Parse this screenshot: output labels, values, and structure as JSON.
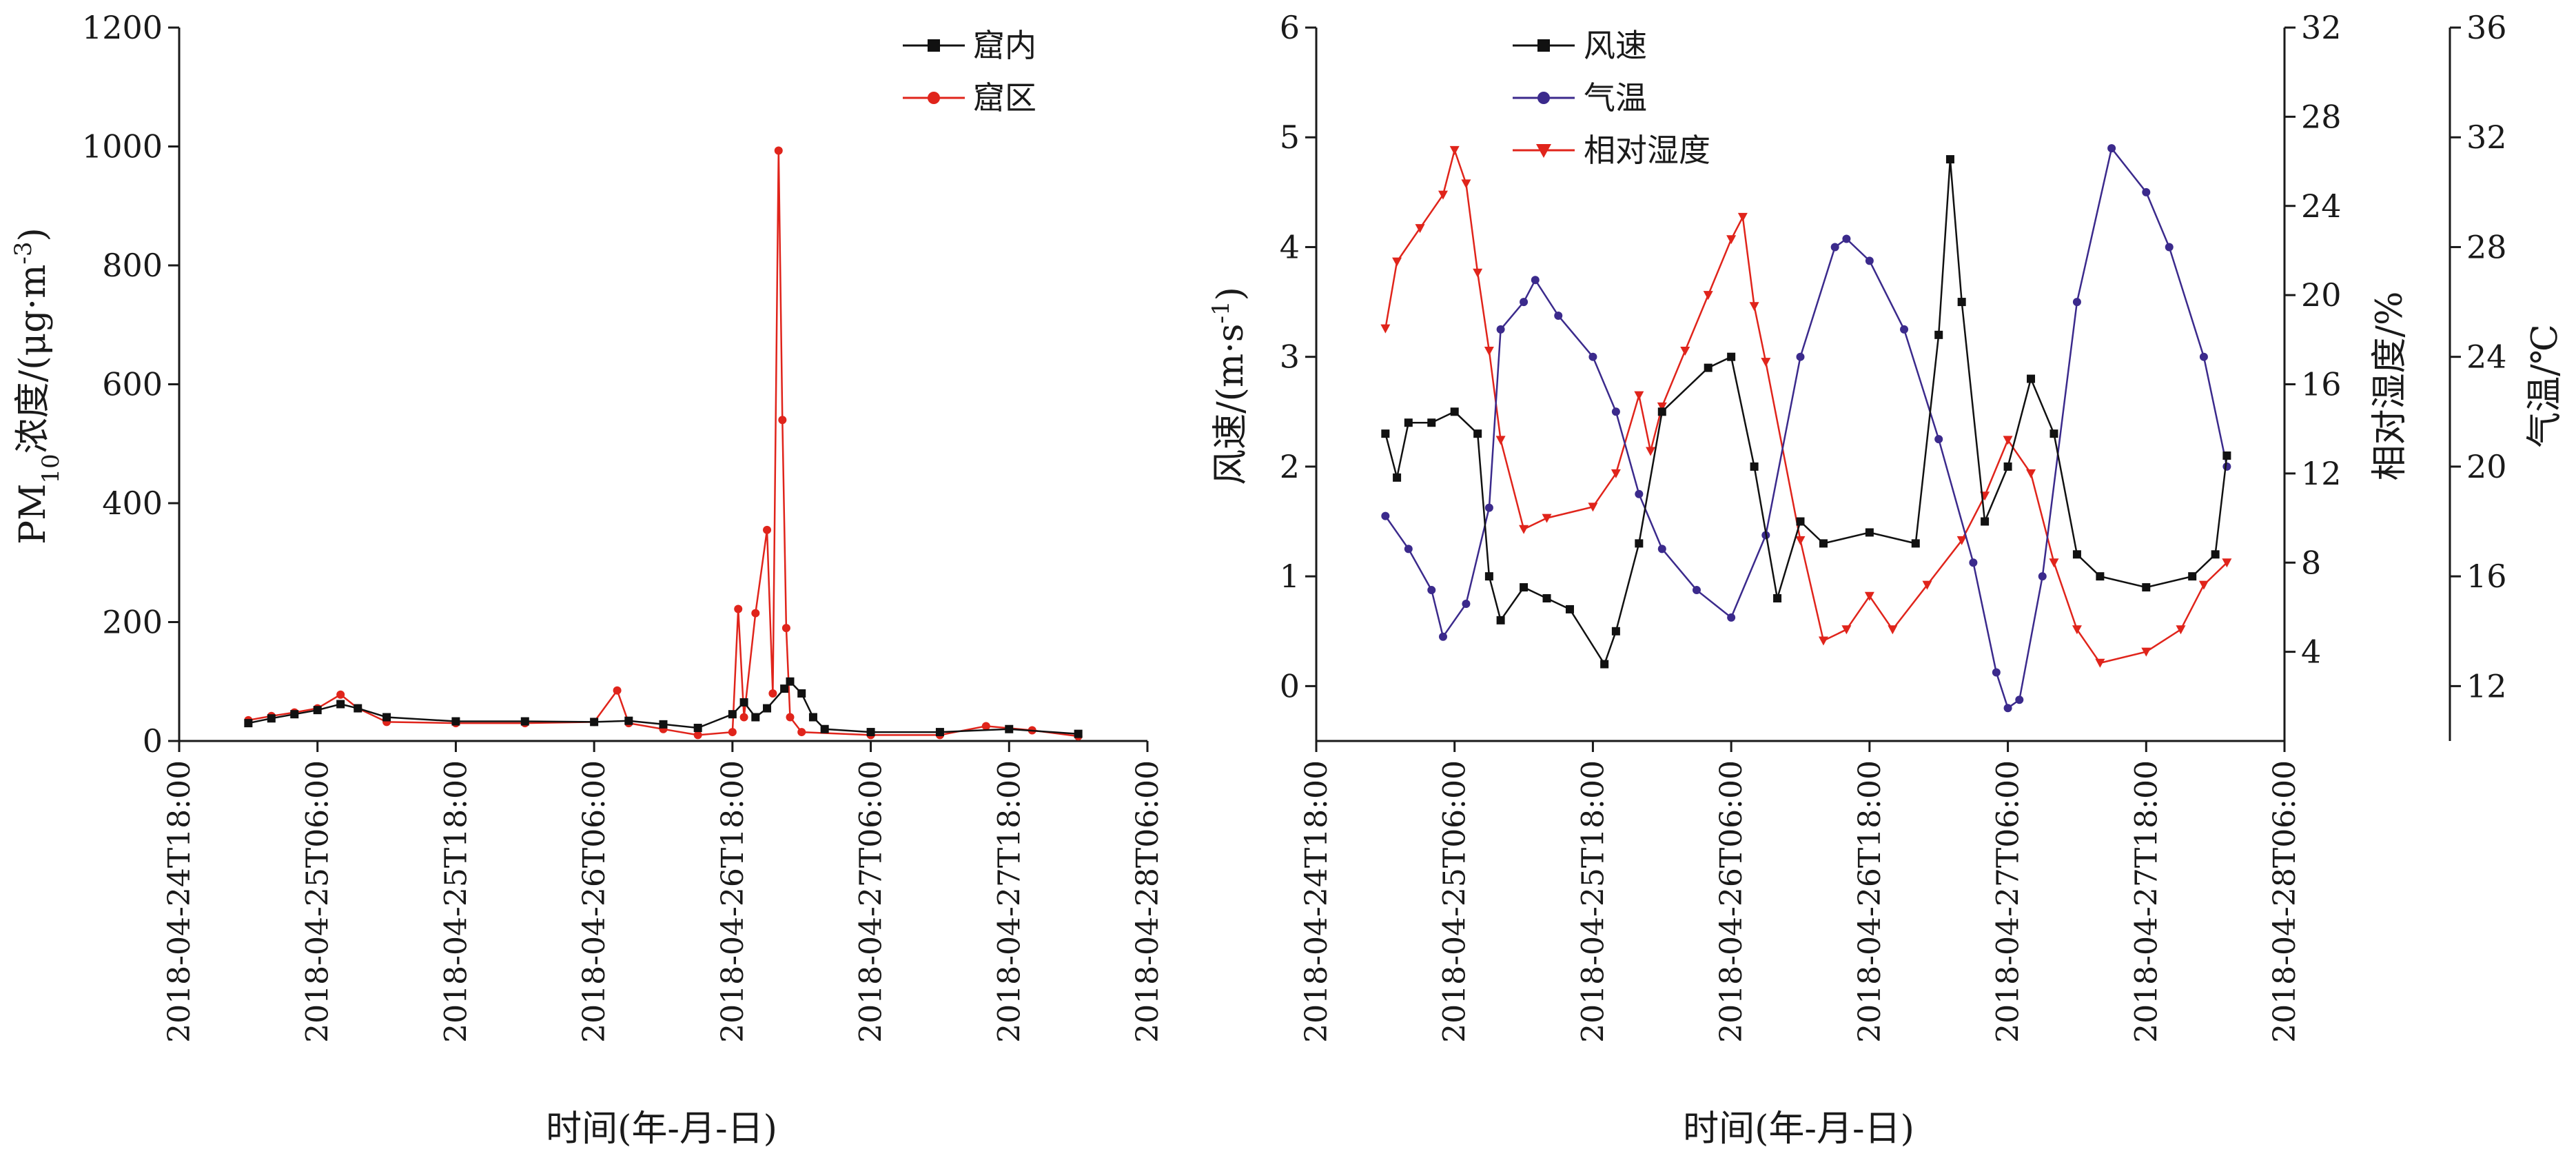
{
  "chart_data": [
    {
      "id": "left",
      "type": "line",
      "ylabel_parts": [
        "PM",
        "10",
        "浓度/(μg·m",
        "-3",
        ")"
      ],
      "xlabel": "时间(年-月-日)",
      "ylim": [
        0,
        1200
      ],
      "y_ticks": [
        "0",
        "200",
        "400",
        "600",
        "800",
        "1000",
        "1200"
      ],
      "x_ticks": [
        "2018-04-24T18:00",
        "2018-04-25T06:00",
        "2018-04-25T18:00",
        "2018-04-26T06:00",
        "2018-04-26T18:00",
        "2018-04-27T06:00",
        "2018-04-27T18:00",
        "2018-04-28T06:00"
      ],
      "x_start": "2018-04-24T18:00",
      "x_end": "2018-04-28T06:00",
      "legend_position": "top-right",
      "series": [
        {
          "name": "窟内",
          "color": "#111111",
          "marker": "square",
          "points": [
            [
              "2018-04-25 00:00",
              30
            ],
            [
              "2018-04-25 02:00",
              38
            ],
            [
              "2018-04-25 04:00",
              45
            ],
            [
              "2018-04-25 06:00",
              52
            ],
            [
              "2018-04-25 08:00",
              62
            ],
            [
              "2018-04-25 09:30",
              55
            ],
            [
              "2018-04-25 12:00",
              40
            ],
            [
              "2018-04-25 18:00",
              33
            ],
            [
              "2018-04-26 00:00",
              33
            ],
            [
              "2018-04-26 06:00",
              32
            ],
            [
              "2018-04-26 09:00",
              34
            ],
            [
              "2018-04-26 12:00",
              28
            ],
            [
              "2018-04-26 15:00",
              22
            ],
            [
              "2018-04-26 18:00",
              45
            ],
            [
              "2018-04-26 19:00",
              65
            ],
            [
              "2018-04-26 20:00",
              40
            ],
            [
              "2018-04-26 21:00",
              55
            ],
            [
              "2018-04-26 22:30",
              88
            ],
            [
              "2018-04-26 23:00",
              100
            ],
            [
              "2018-04-27 00:00",
              80
            ],
            [
              "2018-04-27 01:00",
              40
            ],
            [
              "2018-04-27 02:00",
              20
            ],
            [
              "2018-04-27 06:00",
              15
            ],
            [
              "2018-04-27 12:00",
              15
            ],
            [
              "2018-04-27 18:00",
              20
            ],
            [
              "2018-04-28 00:00",
              12
            ]
          ]
        },
        {
          "name": "窟区",
          "color": "#e0241b",
          "marker": "circle",
          "points": [
            [
              "2018-04-25 00:00",
              35
            ],
            [
              "2018-04-25 02:00",
              42
            ],
            [
              "2018-04-25 04:00",
              48
            ],
            [
              "2018-04-25 06:00",
              55
            ],
            [
              "2018-04-25 08:00",
              78
            ],
            [
              "2018-04-25 09:30",
              55
            ],
            [
              "2018-04-25 12:00",
              32
            ],
            [
              "2018-04-25 18:00",
              30
            ],
            [
              "2018-04-26 00:00",
              30
            ],
            [
              "2018-04-26 06:00",
              32
            ],
            [
              "2018-04-26 08:00",
              85
            ],
            [
              "2018-04-26 09:00",
              30
            ],
            [
              "2018-04-26 12:00",
              20
            ],
            [
              "2018-04-26 15:00",
              10
            ],
            [
              "2018-04-26 18:00",
              15
            ],
            [
              "2018-04-26 18:30",
              222
            ],
            [
              "2018-04-26 19:00",
              40
            ],
            [
              "2018-04-26 20:00",
              215
            ],
            [
              "2018-04-26 21:00",
              355
            ],
            [
              "2018-04-26 21:30",
              80
            ],
            [
              "2018-04-26 22:00",
              993
            ],
            [
              "2018-04-26 22:20",
              540
            ],
            [
              "2018-04-26 22:40",
              190
            ],
            [
              "2018-04-26 23:00",
              40
            ],
            [
              "2018-04-27 00:00",
              15
            ],
            [
              "2018-04-27 06:00",
              10
            ],
            [
              "2018-04-27 12:00",
              10
            ],
            [
              "2018-04-27 16:00",
              25
            ],
            [
              "2018-04-27 20:00",
              18
            ],
            [
              "2018-04-28 00:00",
              8
            ]
          ]
        }
      ]
    },
    {
      "id": "right",
      "type": "line",
      "ylabel_left_parts": [
        "风速/(m·s",
        "-1",
        ")"
      ],
      "ylabel_right1": "相对湿度/%",
      "ylabel_right2": "气温/℃",
      "xlabel": "时间(年-月-日)",
      "ylim_left": [
        -0.5,
        6
      ],
      "ylim_right1": [
        0,
        32
      ],
      "ylim_right2": [
        10,
        36
      ],
      "y_ticks_left": [
        "0",
        "1",
        "2",
        "3",
        "4",
        "5",
        "6"
      ],
      "y_ticks_right1": [
        "4",
        "8",
        "12",
        "16",
        "20",
        "24",
        "28",
        "32"
      ],
      "y_ticks_right2": [
        "12",
        "16",
        "20",
        "24",
        "28",
        "32",
        "36"
      ],
      "x_ticks": [
        "2018-04-24T18:00",
        "2018-04-25T06:00",
        "2018-04-25T18:00",
        "2018-04-26T06:00",
        "2018-04-26T18:00",
        "2018-04-27T06:00",
        "2018-04-27T18:00",
        "2018-04-28T06:00"
      ],
      "x_start": "2018-04-24T18:00",
      "x_end": "2018-04-28T06:00",
      "legend_position": "top-left",
      "series": [
        {
          "name": "风速",
          "axis": "left",
          "color": "#111111",
          "marker": "square",
          "points": [
            [
              "2018-04-25 00:00",
              2.3
            ],
            [
              "2018-04-25 01:00",
              1.9
            ],
            [
              "2018-04-25 02:00",
              2.4
            ],
            [
              "2018-04-25 04:00",
              2.4
            ],
            [
              "2018-04-25 06:00",
              2.5
            ],
            [
              "2018-04-25 08:00",
              2.3
            ],
            [
              "2018-04-25 09:00",
              1.0
            ],
            [
              "2018-04-25 10:00",
              0.6
            ],
            [
              "2018-04-25 12:00",
              0.9
            ],
            [
              "2018-04-25 14:00",
              0.8
            ],
            [
              "2018-04-25 16:00",
              0.7
            ],
            [
              "2018-04-25 19:00",
              0.2
            ],
            [
              "2018-04-25 20:00",
              0.5
            ],
            [
              "2018-04-25 22:00",
              1.3
            ],
            [
              "2018-04-26 00:00",
              2.5
            ],
            [
              "2018-04-26 04:00",
              2.9
            ],
            [
              "2018-04-26 06:00",
              3.0
            ],
            [
              "2018-04-26 08:00",
              2.0
            ],
            [
              "2018-04-26 10:00",
              0.8
            ],
            [
              "2018-04-26 12:00",
              1.5
            ],
            [
              "2018-04-26 14:00",
              1.3
            ],
            [
              "2018-04-26 18:00",
              1.4
            ],
            [
              "2018-04-26 22:00",
              1.3
            ],
            [
              "2018-04-27 00:00",
              3.2
            ],
            [
              "2018-04-27 01:00",
              4.8
            ],
            [
              "2018-04-27 02:00",
              3.5
            ],
            [
              "2018-04-27 04:00",
              1.5
            ],
            [
              "2018-04-27 06:00",
              2.0
            ],
            [
              "2018-04-27 08:00",
              2.8
            ],
            [
              "2018-04-27 10:00",
              2.3
            ],
            [
              "2018-04-27 12:00",
              1.2
            ],
            [
              "2018-04-27 14:00",
              1.0
            ],
            [
              "2018-04-27 18:00",
              0.9
            ],
            [
              "2018-04-27 22:00",
              1.0
            ],
            [
              "2018-04-28 00:00",
              1.2
            ],
            [
              "2018-04-28 01:00",
              2.1
            ]
          ]
        },
        {
          "name": "气温",
          "axis": "right2",
          "color": "#3b2a8c",
          "marker": "circle",
          "points": [
            [
              "2018-04-25 00:00",
              18.2
            ],
            [
              "2018-04-25 02:00",
              17.0
            ],
            [
              "2018-04-25 04:00",
              15.5
            ],
            [
              "2018-04-25 05:00",
              13.8
            ],
            [
              "2018-04-25 07:00",
              15.0
            ],
            [
              "2018-04-25 09:00",
              18.5
            ],
            [
              "2018-04-25 10:00",
              25.0
            ],
            [
              "2018-04-25 12:00",
              26.0
            ],
            [
              "2018-04-25 13:00",
              26.8
            ],
            [
              "2018-04-25 15:00",
              25.5
            ],
            [
              "2018-04-25 18:00",
              24.0
            ],
            [
              "2018-04-25 20:00",
              22.0
            ],
            [
              "2018-04-25 22:00",
              19.0
            ],
            [
              "2018-04-26 00:00",
              17.0
            ],
            [
              "2018-04-26 03:00",
              15.5
            ],
            [
              "2018-04-26 06:00",
              14.5
            ],
            [
              "2018-04-26 09:00",
              17.5
            ],
            [
              "2018-04-26 12:00",
              24.0
            ],
            [
              "2018-04-26 15:00",
              28.0
            ],
            [
              "2018-04-26 16:00",
              28.3
            ],
            [
              "2018-04-26 18:00",
              27.5
            ],
            [
              "2018-04-26 21:00",
              25.0
            ],
            [
              "2018-04-27 00:00",
              21.0
            ],
            [
              "2018-04-27 03:00",
              16.5
            ],
            [
              "2018-04-27 05:00",
              12.5
            ],
            [
              "2018-04-27 06:00",
              11.2
            ],
            [
              "2018-04-27 07:00",
              11.5
            ],
            [
              "2018-04-27 09:00",
              16.0
            ],
            [
              "2018-04-27 12:00",
              26.0
            ],
            [
              "2018-04-27 15:00",
              31.6
            ],
            [
              "2018-04-27 18:00",
              30.0
            ],
            [
              "2018-04-27 20:00",
              28.0
            ],
            [
              "2018-04-27 23:00",
              24.0
            ],
            [
              "2018-04-28 01:00",
              20.0
            ]
          ]
        },
        {
          "name": "相对湿度",
          "axis": "right1",
          "color": "#e0241b",
          "marker": "triangle-down",
          "points": [
            [
              "2018-04-25 00:00",
              18.5
            ],
            [
              "2018-04-25 01:00",
              21.5
            ],
            [
              "2018-04-25 03:00",
              23.0
            ],
            [
              "2018-04-25 05:00",
              24.5
            ],
            [
              "2018-04-25 06:00",
              26.5
            ],
            [
              "2018-04-25 07:00",
              25.0
            ],
            [
              "2018-04-25 08:00",
              21.0
            ],
            [
              "2018-04-25 09:00",
              17.5
            ],
            [
              "2018-04-25 10:00",
              13.5
            ],
            [
              "2018-04-25 12:00",
              9.5
            ],
            [
              "2018-04-25 14:00",
              10.0
            ],
            [
              "2018-04-25 18:00",
              10.5
            ],
            [
              "2018-04-25 20:00",
              12.0
            ],
            [
              "2018-04-25 22:00",
              15.5
            ],
            [
              "2018-04-25 23:00",
              13.0
            ],
            [
              "2018-04-26 00:00",
              15.0
            ],
            [
              "2018-04-26 02:00",
              17.5
            ],
            [
              "2018-04-26 04:00",
              20.0
            ],
            [
              "2018-04-26 06:00",
              22.5
            ],
            [
              "2018-04-26 07:00",
              23.5
            ],
            [
              "2018-04-26 08:00",
              19.5
            ],
            [
              "2018-04-26 09:00",
              17.0
            ],
            [
              "2018-04-26 12:00",
              9.0
            ],
            [
              "2018-04-26 14:00",
              4.5
            ],
            [
              "2018-04-26 16:00",
              5.0
            ],
            [
              "2018-04-26 18:00",
              6.5
            ],
            [
              "2018-04-26 20:00",
              5.0
            ],
            [
              "2018-04-26 23:00",
              7.0
            ],
            [
              "2018-04-27 02:00",
              9.0
            ],
            [
              "2018-04-27 04:00",
              11.0
            ],
            [
              "2018-04-27 06:00",
              13.5
            ],
            [
              "2018-04-27 08:00",
              12.0
            ],
            [
              "2018-04-27 10:00",
              8.0
            ],
            [
              "2018-04-27 12:00",
              5.0
            ],
            [
              "2018-04-27 14:00",
              3.5
            ],
            [
              "2018-04-27 18:00",
              4.0
            ],
            [
              "2018-04-27 21:00",
              5.0
            ],
            [
              "2018-04-27 23:00",
              7.0
            ],
            [
              "2018-04-28 01:00",
              8.0
            ]
          ]
        }
      ]
    }
  ]
}
